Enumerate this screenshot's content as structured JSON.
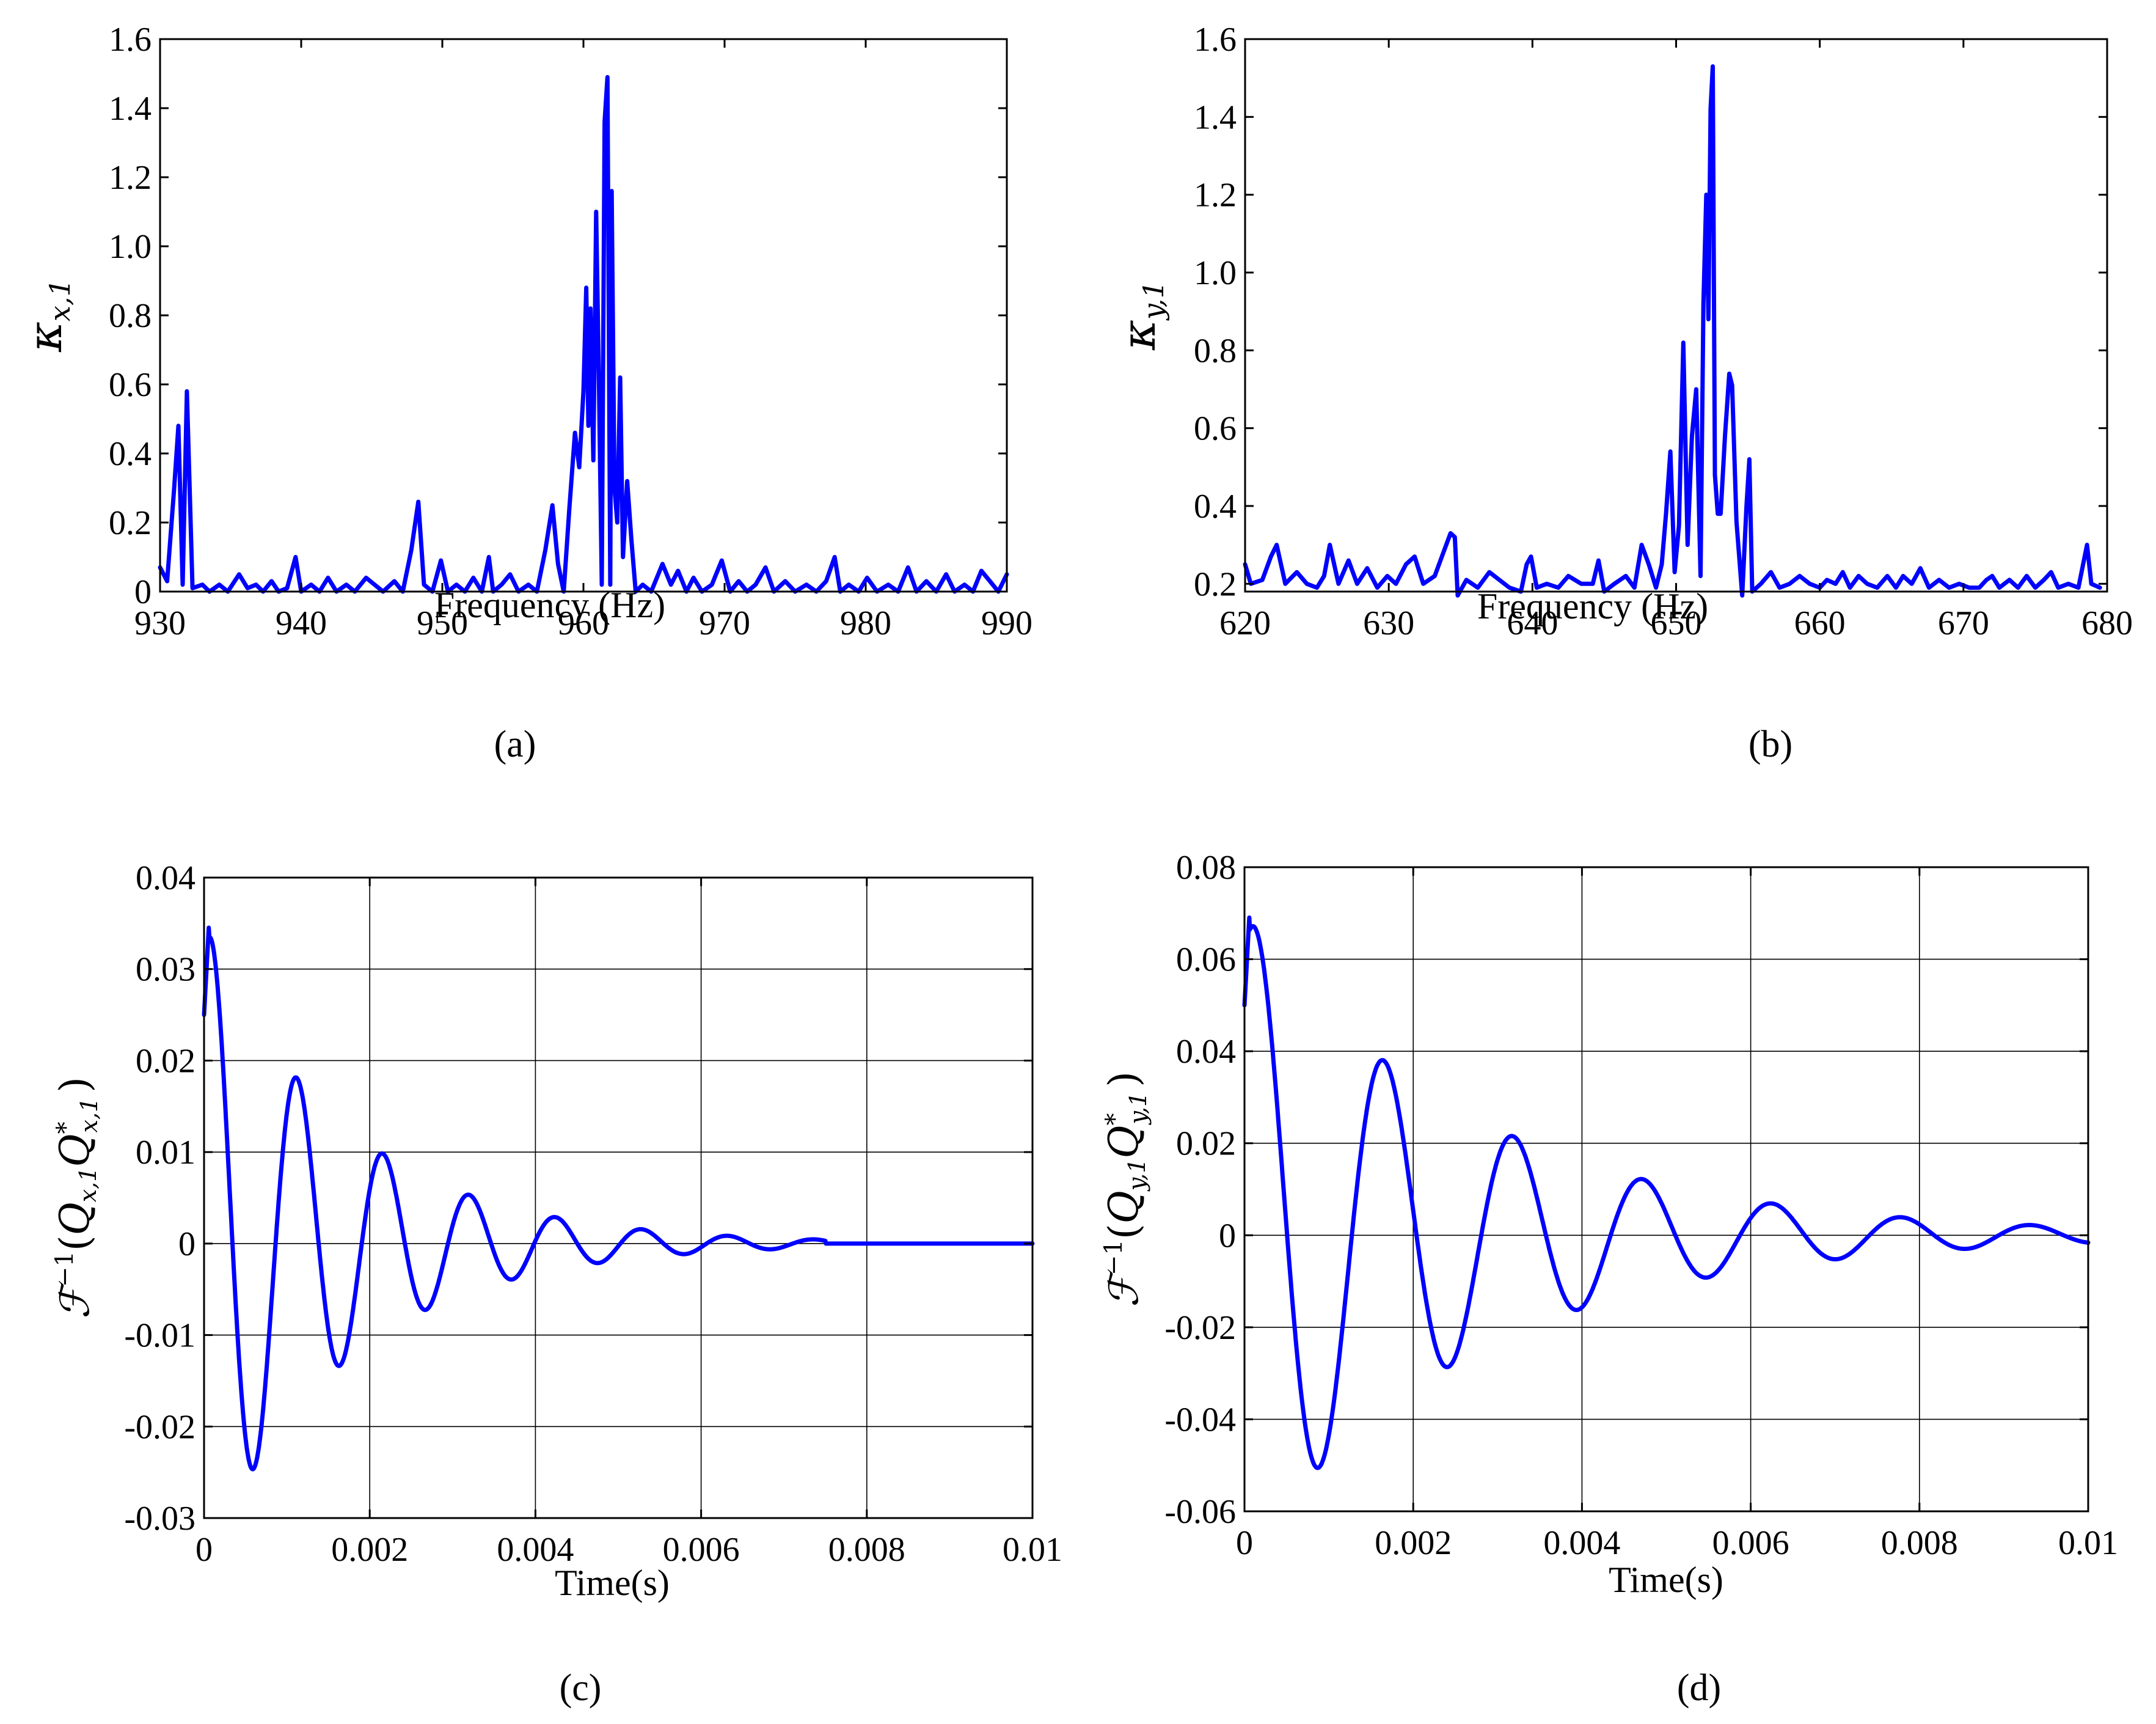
{
  "chart_data": [
    {
      "id": "a",
      "type": "line",
      "caption": "(a)",
      "xlabel": "Frequency (Hz)",
      "ylabel": {
        "base": "κ",
        "sub": "x,1"
      },
      "xlim": [
        930,
        990
      ],
      "ylim": [
        0,
        1.6
      ],
      "xticks": [
        930,
        940,
        950,
        960,
        970,
        980,
        990
      ],
      "yticks": [
        0,
        0.2,
        0.4,
        0.6,
        0.8,
        1.0,
        1.2,
        1.4,
        1.6
      ],
      "ytick_labels": [
        "0",
        "0.2",
        "0.4",
        "0.6",
        "0.8",
        "1.0",
        "1.2",
        "1.4",
        "1.6"
      ],
      "grid": false,
      "color": "#0000ff",
      "series": [
        {
          "name": "κx,1",
          "points": [
            [
              930,
              0.07
            ],
            [
              930.5,
              0.03
            ],
            [
              931,
              0.3
            ],
            [
              931.3,
              0.48
            ],
            [
              931.6,
              0.02
            ],
            [
              931.9,
              0.58
            ],
            [
              932.3,
              0.01
            ],
            [
              933,
              0.02
            ],
            [
              933.5,
              0.0
            ],
            [
              934.2,
              0.02
            ],
            [
              934.8,
              0.0
            ],
            [
              935.6,
              0.05
            ],
            [
              936.2,
              0.01
            ],
            [
              936.8,
              0.02
            ],
            [
              937.3,
              0.0
            ],
            [
              937.9,
              0.03
            ],
            [
              938.4,
              0.0
            ],
            [
              939,
              0.01
            ],
            [
              939.6,
              0.1
            ],
            [
              940,
              0.0
            ],
            [
              940.7,
              0.02
            ],
            [
              941.3,
              0.0
            ],
            [
              941.9,
              0.04
            ],
            [
              942.5,
              0.0
            ],
            [
              943.2,
              0.02
            ],
            [
              943.8,
              0.0
            ],
            [
              944.6,
              0.04
            ],
            [
              945.2,
              0.02
            ],
            [
              945.8,
              0.0
            ],
            [
              946.6,
              0.03
            ],
            [
              947.2,
              0.0
            ],
            [
              947.8,
              0.12
            ],
            [
              948.3,
              0.26
            ],
            [
              948.7,
              0.02
            ],
            [
              949.3,
              0.0
            ],
            [
              949.9,
              0.09
            ],
            [
              950.4,
              0.0
            ],
            [
              951,
              0.02
            ],
            [
              951.6,
              0.0
            ],
            [
              952.2,
              0.04
            ],
            [
              952.8,
              0.0
            ],
            [
              953.3,
              0.1
            ],
            [
              953.6,
              0.0
            ],
            [
              954.2,
              0.02
            ],
            [
              954.8,
              0.05
            ],
            [
              955.4,
              0.0
            ],
            [
              956.1,
              0.02
            ],
            [
              956.7,
              0.0
            ],
            [
              957.3,
              0.12
            ],
            [
              957.8,
              0.25
            ],
            [
              958.2,
              0.08
            ],
            [
              958.6,
              0.0
            ],
            [
              959,
              0.24
            ],
            [
              959.4,
              0.46
            ],
            [
              959.7,
              0.36
            ],
            [
              960,
              0.58
            ],
            [
              960.2,
              0.88
            ],
            [
              960.35,
              0.48
            ],
            [
              960.5,
              0.82
            ],
            [
              960.7,
              0.38
            ],
            [
              960.9,
              1.1
            ],
            [
              961.1,
              0.6
            ],
            [
              961.3,
              0.02
            ],
            [
              961.5,
              1.36
            ],
            [
              961.7,
              1.49
            ],
            [
              961.9,
              0.02
            ],
            [
              962,
              1.16
            ],
            [
              962.2,
              0.3
            ],
            [
              962.4,
              0.2
            ],
            [
              962.6,
              0.62
            ],
            [
              962.8,
              0.1
            ],
            [
              963.1,
              0.32
            ],
            [
              963.4,
              0.15
            ],
            [
              963.7,
              0.0
            ],
            [
              964.2,
              0.02
            ],
            [
              964.8,
              0.0
            ],
            [
              965.6,
              0.08
            ],
            [
              966.2,
              0.02
            ],
            [
              966.7,
              0.06
            ],
            [
              967.3,
              0.0
            ],
            [
              967.8,
              0.04
            ],
            [
              968.4,
              0.0
            ],
            [
              969.1,
              0.02
            ],
            [
              969.8,
              0.09
            ],
            [
              970.4,
              0.0
            ],
            [
              971,
              0.03
            ],
            [
              971.6,
              0.0
            ],
            [
              972.2,
              0.02
            ],
            [
              972.9,
              0.07
            ],
            [
              973.5,
              0.0
            ],
            [
              974.3,
              0.03
            ],
            [
              975,
              0.0
            ],
            [
              975.8,
              0.02
            ],
            [
              976.5,
              0.0
            ],
            [
              977.2,
              0.03
            ],
            [
              977.8,
              0.1
            ],
            [
              978.2,
              0.0
            ],
            [
              978.8,
              0.02
            ],
            [
              979.5,
              0.0
            ],
            [
              980.1,
              0.04
            ],
            [
              980.8,
              0.0
            ],
            [
              981.6,
              0.02
            ],
            [
              982.3,
              0.0
            ],
            [
              983,
              0.07
            ],
            [
              983.6,
              0.0
            ],
            [
              984.3,
              0.03
            ],
            [
              985,
              0.0
            ],
            [
              985.7,
              0.05
            ],
            [
              986.3,
              0.0
            ],
            [
              987,
              0.02
            ],
            [
              987.6,
              0.0
            ],
            [
              988.2,
              0.06
            ],
            [
              988.8,
              0.03
            ],
            [
              989.4,
              0.0
            ],
            [
              990,
              0.05
            ]
          ]
        }
      ]
    },
    {
      "id": "b",
      "type": "line",
      "caption": "(b)",
      "xlabel": "Frequency (Hz)",
      "ylabel": {
        "base": "κ",
        "sub": "y,1"
      },
      "xlim": [
        620,
        680
      ],
      "ylim": [
        0.18,
        1.6
      ],
      "xticks": [
        620,
        630,
        640,
        650,
        660,
        670,
        680
      ],
      "yticks": [
        0.2,
        0.4,
        0.6,
        0.8,
        1.0,
        1.2,
        1.4,
        1.6
      ],
      "ytick_labels": [
        "0.2",
        "0.4",
        "0.6",
        "0.8",
        "1.0",
        "1.2",
        "1.4",
        "1.6"
      ],
      "grid": false,
      "color": "#0000ff",
      "series": [
        {
          "name": "κy,1",
          "points": [
            [
              620,
              0.25
            ],
            [
              620.4,
              0.2
            ],
            [
              621.2,
              0.21
            ],
            [
              621.8,
              0.27
            ],
            [
              622.2,
              0.3
            ],
            [
              622.8,
              0.2
            ],
            [
              623.6,
              0.23
            ],
            [
              624.3,
              0.2
            ],
            [
              625,
              0.19
            ],
            [
              625.5,
              0.22
            ],
            [
              625.9,
              0.3
            ],
            [
              626.5,
              0.2
            ],
            [
              627.2,
              0.26
            ],
            [
              627.8,
              0.2
            ],
            [
              628.5,
              0.24
            ],
            [
              629.2,
              0.19
            ],
            [
              629.9,
              0.22
            ],
            [
              630.5,
              0.2
            ],
            [
              631.2,
              0.25
            ],
            [
              631.8,
              0.27
            ],
            [
              632.4,
              0.2
            ],
            [
              633.2,
              0.22
            ],
            [
              633.8,
              0.28
            ],
            [
              634.3,
              0.33
            ],
            [
              634.6,
              0.32
            ],
            [
              634.8,
              0.17
            ],
            [
              635.4,
              0.21
            ],
            [
              636.2,
              0.19
            ],
            [
              637,
              0.23
            ],
            [
              637.7,
              0.21
            ],
            [
              638.4,
              0.19
            ],
            [
              639.2,
              0.18
            ],
            [
              639.6,
              0.25
            ],
            [
              639.9,
              0.27
            ],
            [
              640.3,
              0.19
            ],
            [
              641,
              0.2
            ],
            [
              641.8,
              0.19
            ],
            [
              642.5,
              0.22
            ],
            [
              643.4,
              0.2
            ],
            [
              644.2,
              0.2
            ],
            [
              644.6,
              0.26
            ],
            [
              645,
              0.18
            ],
            [
              645.7,
              0.2
            ],
            [
              646.5,
              0.22
            ],
            [
              647.1,
              0.19
            ],
            [
              647.6,
              0.3
            ],
            [
              648.1,
              0.25
            ],
            [
              648.6,
              0.19
            ],
            [
              649,
              0.25
            ],
            [
              649.3,
              0.38
            ],
            [
              649.6,
              0.54
            ],
            [
              649.9,
              0.23
            ],
            [
              650.2,
              0.35
            ],
            [
              650.5,
              0.82
            ],
            [
              650.8,
              0.3
            ],
            [
              651.1,
              0.58
            ],
            [
              651.4,
              0.7
            ],
            [
              651.7,
              0.22
            ],
            [
              651.9,
              0.92
            ],
            [
              652.1,
              1.2
            ],
            [
              652.25,
              0.88
            ],
            [
              652.4,
              1.42
            ],
            [
              652.55,
              1.53
            ],
            [
              652.7,
              0.48
            ],
            [
              652.9,
              0.38
            ],
            [
              653.1,
              0.38
            ],
            [
              653.4,
              0.58
            ],
            [
              653.7,
              0.74
            ],
            [
              653.9,
              0.71
            ],
            [
              654.2,
              0.36
            ],
            [
              654.6,
              0.17
            ],
            [
              654.9,
              0.4
            ],
            [
              655.1,
              0.52
            ],
            [
              655.3,
              0.18
            ],
            [
              655.9,
              0.2
            ],
            [
              656.6,
              0.23
            ],
            [
              657.2,
              0.19
            ],
            [
              657.9,
              0.2
            ],
            [
              658.6,
              0.22
            ],
            [
              659.3,
              0.2
            ],
            [
              660,
              0.19
            ],
            [
              660.5,
              0.21
            ],
            [
              661.1,
              0.2
            ],
            [
              661.6,
              0.23
            ],
            [
              662.1,
              0.19
            ],
            [
              662.7,
              0.22
            ],
            [
              663.3,
              0.2
            ],
            [
              664,
              0.19
            ],
            [
              664.7,
              0.22
            ],
            [
              665.3,
              0.19
            ],
            [
              665.8,
              0.22
            ],
            [
              666.4,
              0.2
            ],
            [
              667,
              0.24
            ],
            [
              667.6,
              0.19
            ],
            [
              668.3,
              0.21
            ],
            [
              669,
              0.19
            ],
            [
              669.7,
              0.2
            ],
            [
              670.4,
              0.19
            ],
            [
              671.1,
              0.19
            ],
            [
              671.6,
              0.21
            ],
            [
              672,
              0.22
            ],
            [
              672.5,
              0.19
            ],
            [
              673.2,
              0.21
            ],
            [
              673.8,
              0.19
            ],
            [
              674.4,
              0.22
            ],
            [
              675,
              0.19
            ],
            [
              675.6,
              0.21
            ],
            [
              676.1,
              0.23
            ],
            [
              676.6,
              0.19
            ],
            [
              677.3,
              0.2
            ],
            [
              678,
              0.19
            ],
            [
              678.6,
              0.3
            ],
            [
              678.9,
              0.2
            ],
            [
              679.5,
              0.19
            ]
          ]
        }
      ]
    },
    {
      "id": "c",
      "type": "line",
      "caption": "(c)",
      "xlabel": "Time(s)",
      "ylabel": {
        "F": "ℱ",
        "sup": "−1",
        "Q": "Q",
        "sub": "x,1",
        "tail": "Q",
        "star": "*",
        "sub2": "x,1"
      },
      "xlim": [
        0,
        0.01
      ],
      "ylim": [
        -0.03,
        0.04
      ],
      "xticks": [
        0,
        0.002,
        0.004,
        0.006,
        0.008,
        0.01
      ],
      "xtick_labels": [
        "0",
        "0.002",
        "0.004",
        "0.006",
        "0.008",
        "0.01"
      ],
      "yticks": [
        -0.03,
        -0.02,
        -0.01,
        0,
        0.01,
        0.02,
        0.03,
        0.04
      ],
      "ytick_labels": [
        "-0.03",
        "-0.02",
        "-0.01",
        "0",
        "0.01",
        "0.02",
        "0.03",
        "0.04"
      ],
      "grid": true,
      "color": "#0000ff",
      "signal": {
        "amplitude": 0.035,
        "decay_time": 0.0017,
        "frequency_hz": 961,
        "start_value": 0.025,
        "tail_zero_from": 0.0075
      }
    },
    {
      "id": "d",
      "type": "line",
      "caption": "(d)",
      "xlabel": "Time(s)",
      "ylabel": {
        "F": "ℱ",
        "sup": "−1",
        "Q": "Q",
        "sub": "y,1",
        "tail": "Q",
        "star": "*",
        "sub2": "y,1"
      },
      "xlim": [
        0,
        0.01
      ],
      "ylim": [
        -0.06,
        0.08
      ],
      "xticks": [
        0,
        0.002,
        0.004,
        0.006,
        0.008,
        0.01
      ],
      "xtick_labels": [
        "0",
        "0.002",
        "0.004",
        "0.006",
        "0.008",
        "0.01"
      ],
      "yticks": [
        -0.06,
        -0.04,
        -0.02,
        0,
        0.02,
        0.04,
        0.06,
        0.08
      ],
      "ytick_labels": [
        "-0.06",
        "-0.04",
        "-0.02",
        "0",
        "0.02",
        "0.04",
        "0.06",
        "0.08"
      ],
      "grid": true,
      "color": "#0000ff",
      "signal": {
        "amplitude": 0.07,
        "decay_time": 0.0027,
        "frequency_hz": 652,
        "start_value": 0.05,
        "tail_zero_from": null
      }
    }
  ]
}
